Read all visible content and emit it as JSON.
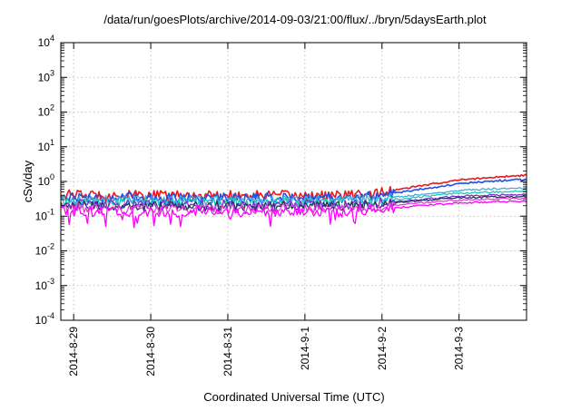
{
  "chart_data": {
    "type": "line",
    "title": "/data/run/goesPlots/archive/2014-09-03/21:00/flux/../bryn/5daysEarth.plot",
    "xlabel": "Coordinated Universal Time (UTC)",
    "ylabel": "cSv/day",
    "y_scale": "log",
    "ylim": [
      0.0001,
      10000
    ],
    "xlim": [
      "2014-08-28T20:00",
      "2014-09-03T21:00"
    ],
    "grid": true,
    "x_ticks": [
      "2014-8-29",
      "2014-8-30",
      "2014-8-31",
      "2014-9-1",
      "2014-9-2",
      "2014-9-3"
    ],
    "y_ticks": [
      {
        "value": 0.0001,
        "base": "10",
        "exp": "-4"
      },
      {
        "value": 0.001,
        "base": "10",
        "exp": "-3"
      },
      {
        "value": 0.01,
        "base": "10",
        "exp": "-2"
      },
      {
        "value": 0.1,
        "base": "10",
        "exp": "-1"
      },
      {
        "value": 1,
        "base": "10",
        "exp": "0"
      },
      {
        "value": 10,
        "base": "10",
        "exp": "1"
      },
      {
        "value": 100,
        "base": "10",
        "exp": "2"
      },
      {
        "value": 1000,
        "base": "10",
        "exp": "3"
      },
      {
        "value": 10000,
        "base": "10",
        "exp": "4"
      }
    ],
    "series": [
      {
        "color": "#e8191c",
        "points": [
          [
            "2014-08-28T20:00",
            0.42
          ],
          [
            "2014-08-29T12:00",
            0.4
          ],
          [
            "2014-08-30T12:00",
            0.4
          ],
          [
            "2014-08-31T12:00",
            0.4
          ],
          [
            "2014-09-01T12:00",
            0.4
          ],
          [
            "2014-09-02T00:00",
            0.48
          ],
          [
            "2014-09-02T12:00",
            0.75
          ],
          [
            "2014-09-03T00:00",
            1.1
          ],
          [
            "2014-09-03T12:00",
            1.35
          ],
          [
            "2014-09-03T21:00",
            1.5
          ]
        ]
      },
      {
        "color": "#1f4fe6",
        "points": [
          [
            "2014-08-28T20:00",
            0.36
          ],
          [
            "2014-08-29T12:00",
            0.34
          ],
          [
            "2014-08-30T12:00",
            0.34
          ],
          [
            "2014-08-31T12:00",
            0.34
          ],
          [
            "2014-09-01T12:00",
            0.34
          ],
          [
            "2014-09-02T00:00",
            0.4
          ],
          [
            "2014-09-02T12:00",
            0.6
          ],
          [
            "2014-09-03T00:00",
            0.85
          ],
          [
            "2014-09-03T12:00",
            1.05
          ],
          [
            "2014-09-03T21:00",
            1.15
          ]
        ]
      },
      {
        "color": "#4aa8e0",
        "points": [
          [
            "2014-08-28T20:00",
            0.3
          ],
          [
            "2014-08-29T12:00",
            0.29
          ],
          [
            "2014-08-30T12:00",
            0.29
          ],
          [
            "2014-08-31T12:00",
            0.29
          ],
          [
            "2014-09-01T12:00",
            0.29
          ],
          [
            "2014-09-02T00:00",
            0.32
          ],
          [
            "2014-09-02T12:00",
            0.42
          ],
          [
            "2014-09-03T00:00",
            0.55
          ],
          [
            "2014-09-03T12:00",
            0.62
          ],
          [
            "2014-09-03T21:00",
            0.65
          ]
        ]
      },
      {
        "color": "#18c9b8",
        "points": [
          [
            "2014-08-28T20:00",
            0.26
          ],
          [
            "2014-08-29T12:00",
            0.25
          ],
          [
            "2014-08-30T12:00",
            0.25
          ],
          [
            "2014-08-31T12:00",
            0.25
          ],
          [
            "2014-09-01T12:00",
            0.25
          ],
          [
            "2014-09-02T00:00",
            0.28
          ],
          [
            "2014-09-02T12:00",
            0.36
          ],
          [
            "2014-09-03T00:00",
            0.46
          ],
          [
            "2014-09-03T12:00",
            0.5
          ],
          [
            "2014-09-03T21:00",
            0.52
          ]
        ]
      },
      {
        "color": "#7a2fc4",
        "points": [
          [
            "2014-08-28T20:00",
            0.22
          ],
          [
            "2014-08-29T12:00",
            0.21
          ],
          [
            "2014-08-30T12:00",
            0.21
          ],
          [
            "2014-08-31T12:00",
            0.21
          ],
          [
            "2014-09-01T12:00",
            0.21
          ],
          [
            "2014-09-02T00:00",
            0.24
          ],
          [
            "2014-09-02T12:00",
            0.3
          ],
          [
            "2014-09-03T00:00",
            0.38
          ],
          [
            "2014-09-03T12:00",
            0.41
          ],
          [
            "2014-09-03T21:00",
            0.42
          ]
        ]
      },
      {
        "color": "#2b2f66",
        "points": [
          [
            "2014-08-28T20:00",
            0.2
          ],
          [
            "2014-08-29T12:00",
            0.19
          ],
          [
            "2014-08-30T12:00",
            0.19
          ],
          [
            "2014-08-31T12:00",
            0.19
          ],
          [
            "2014-09-01T12:00",
            0.19
          ],
          [
            "2014-09-02T00:00",
            0.22
          ],
          [
            "2014-09-02T12:00",
            0.28
          ],
          [
            "2014-09-03T00:00",
            0.34
          ],
          [
            "2014-09-03T12:00",
            0.36
          ],
          [
            "2014-09-03T21:00",
            0.37
          ]
        ]
      },
      {
        "color": "#e040d8",
        "points": [
          [
            "2014-08-28T20:00",
            0.17
          ],
          [
            "2014-08-29T12:00",
            0.16
          ],
          [
            "2014-08-30T12:00",
            0.16
          ],
          [
            "2014-08-31T12:00",
            0.16
          ],
          [
            "2014-09-01T12:00",
            0.16
          ],
          [
            "2014-09-02T00:00",
            0.19
          ],
          [
            "2014-09-02T12:00",
            0.24
          ],
          [
            "2014-09-03T00:00",
            0.29
          ],
          [
            "2014-09-03T12:00",
            0.31
          ],
          [
            "2014-09-03T21:00",
            0.32
          ]
        ]
      },
      {
        "color": "#ff00ff",
        "points": [
          [
            "2014-08-28T20:00",
            0.14
          ],
          [
            "2014-08-29T12:00",
            0.13
          ],
          [
            "2014-08-30T12:00",
            0.13
          ],
          [
            "2014-08-31T12:00",
            0.13
          ],
          [
            "2014-09-01T12:00",
            0.13
          ],
          [
            "2014-09-02T00:00",
            0.16
          ],
          [
            "2014-09-02T12:00",
            0.2
          ],
          [
            "2014-09-03T00:00",
            0.24
          ],
          [
            "2014-09-03T12:00",
            0.26
          ],
          [
            "2014-09-03T21:00",
            0.27
          ]
        ]
      }
    ]
  }
}
